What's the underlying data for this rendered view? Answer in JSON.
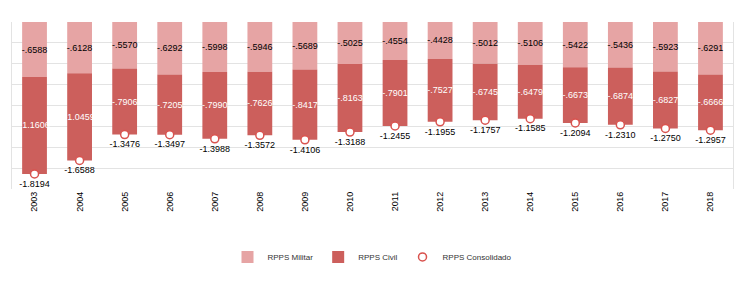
{
  "chart_data": {
    "type": "bar",
    "stacked": true,
    "data_labels": true,
    "grid": true,
    "tick_labels": "x",
    "legend": "bottom",
    "categories": [
      "2003",
      "2004",
      "2005",
      "2006",
      "2007",
      "2008",
      "2009",
      "2010",
      "2011",
      "2012",
      "2013",
      "2014",
      "2015",
      "2016",
      "2017",
      "2018"
    ],
    "ylim": [
      -2,
      0
    ],
    "yticks": [
      -2,
      -1.75,
      -1.5,
      -1.25,
      -1,
      -0.75,
      -0.5,
      -0.25,
      0
    ],
    "series": [
      {
        "name": "RPPS Militar",
        "type": "bar",
        "color": "#e6a4a4",
        "values": [
          -0.6588,
          -0.6128,
          -0.557,
          -0.6292,
          -0.5998,
          -0.5946,
          -0.5689,
          -0.5025,
          -0.4554,
          -0.4428,
          -0.5012,
          -0.5106,
          -0.5422,
          -0.5436,
          -0.5923,
          -0.6291
        ],
        "value_labels": [
          "-.6588",
          "-.6128",
          "-.5570",
          "-.6292",
          "-.5998",
          "-.5946",
          "-.5689",
          "-.5025",
          "-.4554",
          "-.4428",
          "-.5012",
          "-.5106",
          "-.5422",
          "-.5436",
          "-.5923",
          "-.6291"
        ]
      },
      {
        "name": "RPPS Civil",
        "type": "bar",
        "color": "#cc5f5c",
        "values": [
          -1.1606,
          -1.0459,
          -0.7906,
          -0.7205,
          -0.799,
          -0.7626,
          -0.8417,
          -0.8163,
          -0.7901,
          -0.7527,
          -0.6745,
          -0.6479,
          -0.6673,
          -0.6874,
          -0.6827,
          -0.6666
        ],
        "value_labels": [
          "-1.1606",
          "-1.0459",
          "-.7906",
          "-.7205",
          "-.7990",
          "-.7626",
          "-.8417",
          "-.8163",
          "-.7901",
          "-.7527",
          "-.6745",
          "-.6479",
          "-.6673",
          "-.6874",
          "-.6827",
          "-.6666"
        ]
      },
      {
        "name": "RPPS Consolidado",
        "type": "scatter",
        "marker": "circle",
        "color": "#d9534f",
        "values": [
          -1.8194,
          -1.6588,
          -1.3476,
          -1.3497,
          -1.3988,
          -1.3572,
          -1.4106,
          -1.3188,
          -1.2455,
          -1.1955,
          -1.1757,
          -1.1585,
          -1.2094,
          -1.231,
          -1.275,
          -1.2957
        ],
        "value_labels": [
          "-1.8194",
          "-1.6588",
          "-1.3476",
          "-1.3497",
          "-1.3988",
          "-1.3572",
          "-1.4106",
          "-1.3188",
          "-1.2455",
          "-1.1955",
          "-1.1757",
          "-1.1585",
          "-1.2094",
          "-1.2310",
          "-1.2750",
          "-1.2957"
        ]
      }
    ]
  }
}
